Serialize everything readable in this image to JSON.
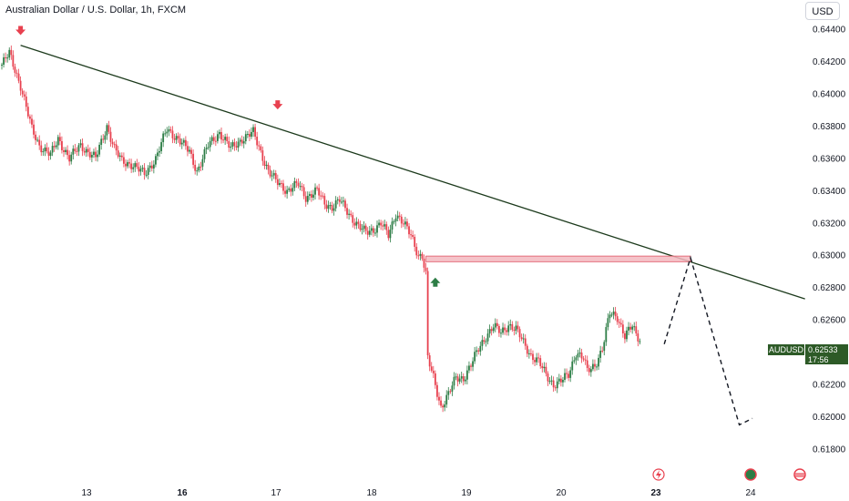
{
  "title": "Australian Dollar / U.S. Dollar, 1h, FXCM",
  "currency_button": "USD",
  "price_tag": {
    "symbol": "AUDUSD",
    "price": "0.62533",
    "countdown": "17:56"
  },
  "colors": {
    "up": "#2d7d46",
    "down": "#e8414f",
    "trendline": "#1c3a1c",
    "zone_fill": "#f3b8bf",
    "zone_stroke": "#e05565",
    "arrow_down": "#e8414f",
    "arrow_up": "#2d7d46"
  },
  "chart_data": {
    "type": "candlestick",
    "title": "Australian Dollar / U.S. Dollar, 1h, FXCM",
    "y_ticks": [
      "0.64400",
      "0.64200",
      "0.64000",
      "0.63800",
      "0.63600",
      "0.63400",
      "0.63200",
      "0.63000",
      "0.62800",
      "0.62600",
      "0.62400",
      "0.62200",
      "0.62000",
      "0.61800"
    ],
    "ylim": [
      0.6172,
      0.6446
    ],
    "x_ticks": [
      {
        "label": "13",
        "bold": false
      },
      {
        "label": "16",
        "bold": true
      },
      {
        "label": "17",
        "bold": false
      },
      {
        "label": "18",
        "bold": false
      },
      {
        "label": "19",
        "bold": false
      },
      {
        "label": "20",
        "bold": false
      },
      {
        "label": "23",
        "bold": true
      },
      {
        "label": "24",
        "bold": false
      }
    ],
    "price_path": [
      [
        0,
        0.6418
      ],
      [
        4,
        0.6425
      ],
      [
        10,
        0.6405
      ],
      [
        16,
        0.6378
      ],
      [
        20,
        0.6368
      ],
      [
        26,
        0.6362
      ],
      [
        30,
        0.6372
      ],
      [
        36,
        0.636
      ],
      [
        42,
        0.6368
      ],
      [
        50,
        0.636
      ],
      [
        56,
        0.638
      ],
      [
        60,
        0.6366
      ],
      [
        64,
        0.6358
      ],
      [
        70,
        0.6356
      ],
      [
        76,
        0.635
      ],
      [
        82,
        0.636
      ],
      [
        88,
        0.6378
      ],
      [
        94,
        0.6372
      ],
      [
        100,
        0.6364
      ],
      [
        104,
        0.6352
      ],
      [
        110,
        0.6368
      ],
      [
        116,
        0.6376
      ],
      [
        122,
        0.6366
      ],
      [
        128,
        0.6372
      ],
      [
        134,
        0.6376
      ],
      [
        138,
        0.6364
      ],
      [
        142,
        0.6352
      ],
      [
        146,
        0.6346
      ],
      [
        152,
        0.634
      ],
      [
        158,
        0.6344
      ],
      [
        162,
        0.6336
      ],
      [
        168,
        0.634
      ],
      [
        172,
        0.6332
      ],
      [
        176,
        0.633
      ],
      [
        180,
        0.6334
      ],
      [
        186,
        0.6324
      ],
      [
        190,
        0.6318
      ],
      [
        194,
        0.6314
      ],
      [
        198,
        0.6316
      ],
      [
        202,
        0.632
      ],
      [
        206,
        0.6312
      ],
      [
        210,
        0.6326
      ],
      [
        214,
        0.632
      ],
      [
        218,
        0.6312
      ],
      [
        222,
        0.63
      ],
      [
        224,
        0.63
      ],
      [
        226,
        0.6288
      ],
      [
        227,
        0.6236
      ],
      [
        230,
        0.6224
      ],
      [
        234,
        0.6206
      ],
      [
        238,
        0.6214
      ],
      [
        242,
        0.6224
      ],
      [
        246,
        0.6224
      ],
      [
        250,
        0.6232
      ],
      [
        254,
        0.6242
      ],
      [
        258,
        0.625
      ],
      [
        262,
        0.6256
      ],
      [
        266,
        0.6252
      ],
      [
        270,
        0.6257
      ],
      [
        274,
        0.6254
      ],
      [
        278,
        0.6246
      ],
      [
        282,
        0.6238
      ],
      [
        286,
        0.6234
      ],
      [
        290,
        0.6226
      ],
      [
        294,
        0.622
      ],
      [
        298,
        0.6222
      ],
      [
        302,
        0.6226
      ],
      [
        306,
        0.624
      ],
      [
        310,
        0.6236
      ],
      [
        312,
        0.6228
      ],
      [
        316,
        0.6232
      ],
      [
        320,
        0.6242
      ],
      [
        324,
        0.6264
      ],
      [
        328,
        0.6262
      ],
      [
        332,
        0.625
      ],
      [
        336,
        0.6256
      ],
      [
        338,
        0.6251
      ],
      [
        340,
        0.6248
      ]
    ],
    "trendline": [
      [
        10,
        0.643
      ],
      [
        428,
        0.6273
      ]
    ],
    "resistance_zone": {
      "t0": 226,
      "t1": 367,
      "y_top": 0.62995,
      "y_bottom": 0.6296
    },
    "projection": [
      [
        353,
        0.6245
      ],
      [
        367,
        0.62985
      ],
      [
        393,
        0.6195
      ],
      [
        400,
        0.6199
      ]
    ],
    "markers": [
      {
        "type": "arrow-down",
        "t": 10,
        "price": 0.6438
      },
      {
        "type": "arrow-down",
        "t": 147,
        "price": 0.6392
      },
      {
        "type": "arrow-up",
        "t": 231,
        "price": 0.62845
      }
    ]
  }
}
